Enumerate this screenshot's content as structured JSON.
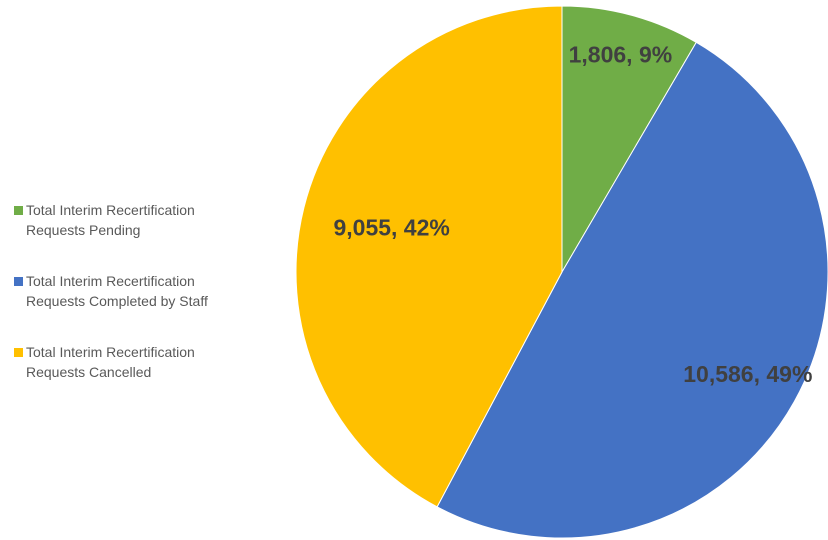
{
  "chart_data": {
    "type": "pie",
    "categories": [
      "Total Interim Recertification Requests Pending",
      "Total Interim Recertification Requests Completed by Staff",
      "Total Interim Recertification Requests Cancelled"
    ],
    "values": [
      1806,
      10586,
      9055
    ],
    "value_labels": [
      "1,806, 9%",
      "10,586, 49%",
      "9,055, 42%"
    ],
    "colors": [
      "#70ad47",
      "#4472c4",
      "#ffc000"
    ],
    "legend": "left"
  }
}
